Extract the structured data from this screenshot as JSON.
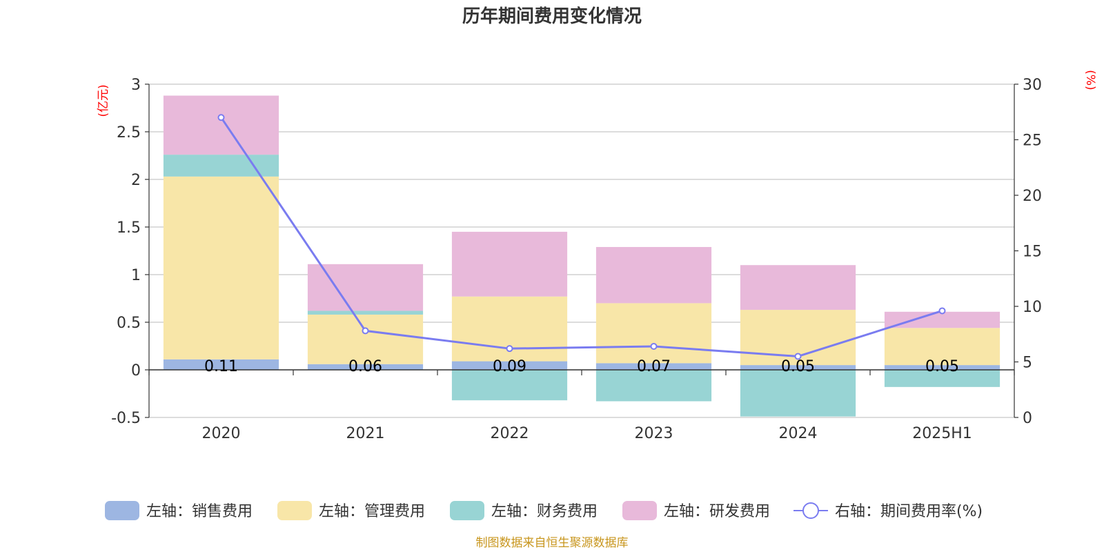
{
  "chart_data": {
    "type": "bar",
    "title": "历年期间费用变化情况",
    "categories": [
      "2020",
      "2021",
      "2022",
      "2023",
      "2024",
      "2025H1"
    ],
    "y_left": {
      "unit": "(亿元)",
      "range": [
        -0.5,
        3
      ],
      "ticks": [
        "-0.5",
        "0",
        "0.5",
        "1",
        "1.5",
        "2",
        "2.5",
        "3"
      ]
    },
    "y_right": {
      "unit": "(%)",
      "range": [
        0,
        30
      ],
      "ticks": [
        "0",
        "5",
        "10",
        "15",
        "20",
        "25",
        "30"
      ]
    },
    "series": [
      {
        "name": "左轴：销售费用",
        "type": "bar",
        "color": "#9db6e2",
        "values": [
          0.11,
          0.06,
          0.09,
          0.07,
          0.05,
          0.05
        ]
      },
      {
        "name": "左轴：管理费用",
        "type": "bar",
        "color": "#f8e6a8",
        "values": [
          1.92,
          0.52,
          0.68,
          0.63,
          0.58,
          0.39
        ]
      },
      {
        "name": "左轴：财务费用",
        "type": "bar",
        "color": "#98d4d4",
        "values": [
          0.23,
          0.04,
          -0.32,
          -0.33,
          -0.49,
          -0.18
        ]
      },
      {
        "name": "左轴：研发费用",
        "type": "bar",
        "color": "#e8b9da",
        "values": [
          0.62,
          0.49,
          0.68,
          0.59,
          0.47,
          0.17
        ]
      },
      {
        "name": "右轴：期间费用率(%)",
        "type": "line",
        "axis": "right",
        "color": "#7a7cf0",
        "values": [
          27.0,
          7.8,
          6.2,
          6.4,
          5.5,
          9.6
        ]
      }
    ],
    "data_labels": [
      "0.11",
      "0.06",
      "0.09",
      "0.07",
      "0.05",
      "0.05"
    ],
    "grid": true,
    "legend_position": "bottom-center",
    "source": "制图数据来自恒生聚源数据库"
  }
}
